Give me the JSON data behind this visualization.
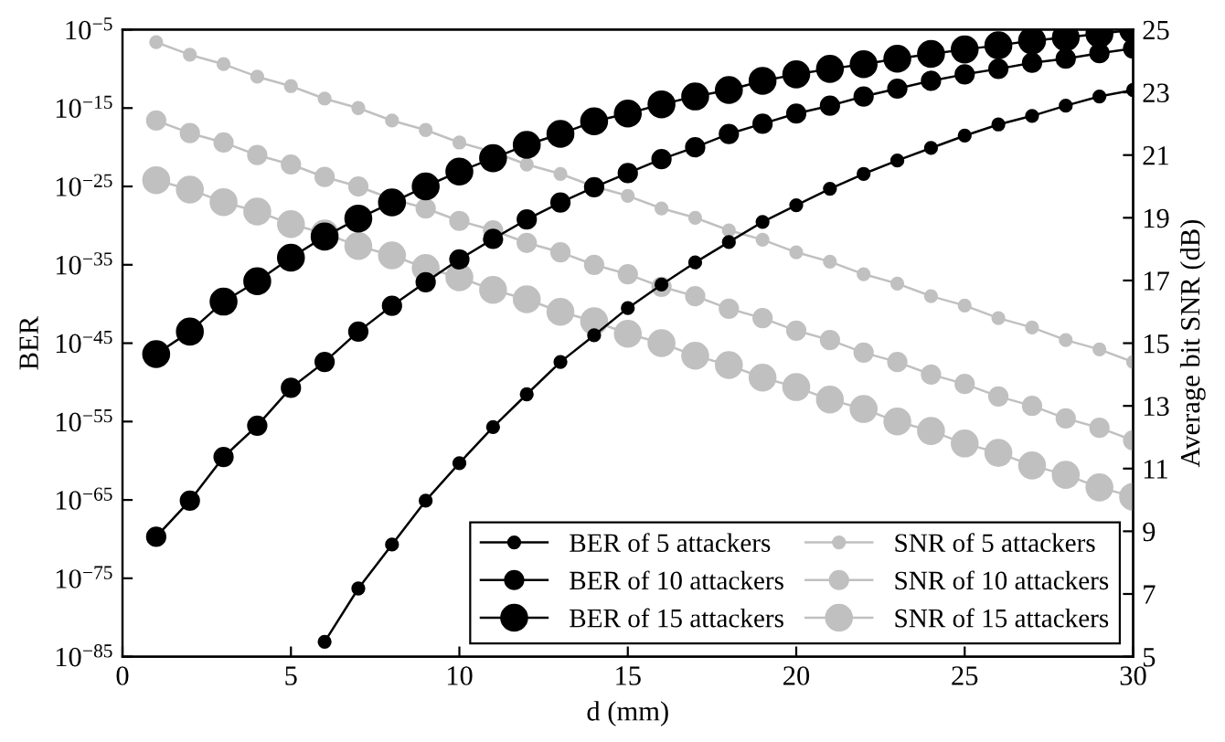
{
  "chart_data": {
    "type": "line",
    "xlabel": "d (mm)",
    "ylabel": "BER",
    "y2label": "Average bit SNR (dB)",
    "xlim": [
      0,
      30
    ],
    "xticks": [
      0,
      5,
      10,
      15,
      20,
      25,
      30
    ],
    "ylim": [
      1e-85,
      1e-05
    ],
    "yticks": [
      {
        "value": 1e-05,
        "label": "10$^{−5}$"
      },
      {
        "value": 1e-15,
        "label": "10$^{−15}$"
      },
      {
        "value": 1e-25,
        "label": "10$^{−25}$"
      },
      {
        "value": 1e-35,
        "label": "10$^{−35}$"
      },
      {
        "value": 1e-45,
        "label": "10$^{−45}$"
      },
      {
        "value": 1e-55,
        "label": "10$^{−55}$"
      },
      {
        "value": 1e-65,
        "label": "10$^{−65}$"
      },
      {
        "value": 1e-75,
        "label": "10$^{−75}$"
      },
      {
        "value": 1e-85,
        "label": "10$^{−85}$"
      }
    ],
    "y2lim": [
      5,
      25
    ],
    "y2ticks": [
      5,
      7,
      9,
      11,
      13,
      15,
      17,
      19,
      21,
      23,
      25
    ],
    "log": "y",
    "grid": false,
    "legend": "bottom right",
    "marker": "circle",
    "line_style": "solid",
    "series": [
      {
        "name": "BER of 5 attackers",
        "color": "#000000",
        "x": [
          6,
          7,
          8,
          9,
          10,
          11,
          12,
          13,
          14,
          15,
          16,
          17,
          18,
          19,
          20,
          21,
          22,
          23,
          24,
          25,
          26,
          27,
          28,
          29,
          30
        ],
        "values": [
          8e-84,
          5e-77,
          2e-71,
          8e-66,
          5e-61,
          2e-56,
          3e-52,
          4e-48,
          1e-44,
          3e-41,
          3e-38,
          2e-35,
          8e-33,
          3e-30,
          4e-28,
          5e-26,
          4e-24,
          2e-22,
          8e-21,
          3e-19,
          8e-18,
          1e-16,
          2e-15,
          3e-14,
          2e-13
        ]
      },
      {
        "name": "BER of 10 attackers",
        "color": "#000000",
        "x": [
          1,
          2,
          3,
          4,
          5,
          6,
          7,
          8,
          9,
          10,
          11,
          12,
          13,
          14,
          15,
          16,
          17,
          18,
          19,
          20,
          21,
          22,
          23,
          24,
          25,
          26,
          27,
          28,
          29,
          30
        ],
        "values": [
          2e-70,
          8e-66,
          3e-60,
          3e-56,
          2e-51,
          4e-48,
          3e-44,
          6e-41,
          6e-38,
          5e-35,
          2e-32,
          6e-30,
          9e-28,
          8e-26,
          5e-24,
          3e-22,
          1e-20,
          5e-19,
          1e-17,
          2e-16,
          2e-15,
          3e-14,
          3e-13,
          3e-12,
          2e-11,
          1e-10,
          6e-10,
          2e-09,
          1e-08,
          4e-08
        ]
      },
      {
        "name": "BER of 15 attackers",
        "color": "#000000",
        "x": [
          1,
          2,
          3,
          4,
          5,
          6,
          7,
          8,
          9,
          10,
          11,
          12,
          13,
          14,
          15,
          16,
          17,
          18,
          19,
          20,
          21,
          22,
          23,
          24,
          25,
          26,
          27,
          28,
          29,
          30
        ],
        "values": [
          4e-47,
          3e-44,
          2e-40,
          8e-38,
          8e-35,
          4e-32,
          8e-30,
          9e-28,
          1e-25,
          8e-24,
          4e-22,
          2e-20,
          5e-19,
          2e-17,
          2e-16,
          3e-15,
          3e-14,
          2e-13,
          3e-12,
          2e-11,
          1e-10,
          4e-10,
          2e-09,
          8e-09,
          3e-08,
          1e-07,
          4e-07,
          1e-06,
          3e-06,
          1e-05
        ]
      },
      {
        "name": "SNR of 5 attackers",
        "color": "#c0c0c0",
        "axis": "y2",
        "x": [
          1,
          2,
          3,
          4,
          5,
          6,
          7,
          8,
          9,
          10,
          11,
          12,
          13,
          14,
          15,
          16,
          17,
          18,
          19,
          20,
          21,
          22,
          23,
          24,
          25,
          26,
          27,
          28,
          29,
          30
        ],
        "values": [
          24.6,
          24.2,
          23.9,
          23.5,
          23.2,
          22.8,
          22.5,
          22.1,
          21.8,
          21.4,
          21.1,
          20.7,
          20.4,
          20.0,
          19.7,
          19.3,
          19.0,
          18.6,
          18.3,
          17.9,
          17.6,
          17.2,
          16.9,
          16.5,
          16.2,
          15.8,
          15.5,
          15.1,
          14.8,
          14.4
        ]
      },
      {
        "name": "SNR of 10 attackers",
        "color": "#c0c0c0",
        "axis": "y2",
        "x": [
          1,
          2,
          3,
          4,
          5,
          6,
          7,
          8,
          9,
          10,
          11,
          12,
          13,
          14,
          15,
          16,
          17,
          18,
          19,
          20,
          21,
          22,
          23,
          24,
          25,
          26,
          27,
          28,
          29,
          30
        ],
        "values": [
          22.1,
          21.7,
          21.4,
          21.0,
          20.7,
          20.3,
          20.0,
          19.6,
          19.3,
          18.9,
          18.6,
          18.2,
          17.9,
          17.5,
          17.2,
          16.8,
          16.5,
          16.1,
          15.8,
          15.4,
          15.1,
          14.7,
          14.4,
          14.0,
          13.7,
          13.3,
          13.0,
          12.6,
          12.3,
          11.9
        ]
      },
      {
        "name": "SNR of 15 attackers",
        "color": "#c0c0c0",
        "axis": "y2",
        "x": [
          1,
          2,
          3,
          4,
          5,
          6,
          7,
          8,
          9,
          10,
          11,
          12,
          13,
          14,
          15,
          16,
          17,
          18,
          19,
          20,
          21,
          22,
          23,
          24,
          25,
          26,
          27,
          28,
          29,
          30
        ],
        "values": [
          20.2,
          19.9,
          19.5,
          19.2,
          18.8,
          18.5,
          18.1,
          17.8,
          17.4,
          17.1,
          16.7,
          16.4,
          16.0,
          15.7,
          15.3,
          15.0,
          14.6,
          14.3,
          13.9,
          13.6,
          13.2,
          12.9,
          12.5,
          12.2,
          11.8,
          11.5,
          11.1,
          10.8,
          10.4,
          10.1
        ]
      }
    ]
  }
}
